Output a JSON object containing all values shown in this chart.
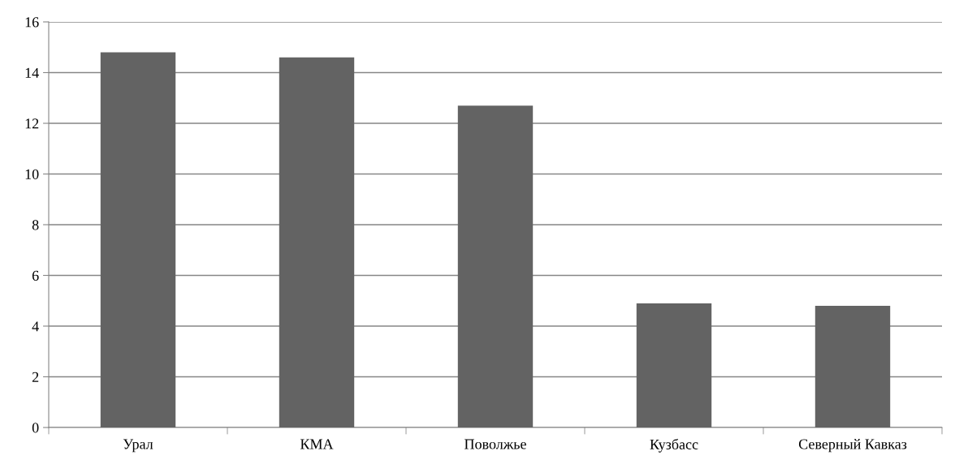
{
  "chart_data": {
    "type": "bar",
    "categories": [
      "Урал",
      "КМА",
      "Поволжье",
      "Кузбасс",
      "Северный Кавказ"
    ],
    "values": [
      14.8,
      14.6,
      12.7,
      4.9,
      4.8
    ],
    "color": "#636363",
    "ylim": [
      0,
      16
    ],
    "yticks": [
      0,
      2,
      4,
      6,
      8,
      10,
      12,
      14,
      16
    ],
    "grid": "y"
  }
}
